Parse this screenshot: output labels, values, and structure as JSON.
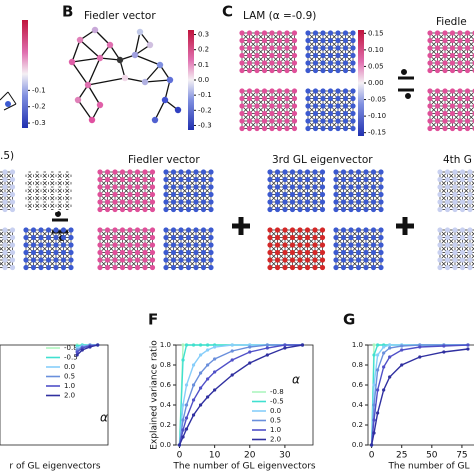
{
  "panel_labels": {
    "b": "B",
    "c": "C",
    "f": "F",
    "g": "G"
  },
  "titles": {
    "b": "Fiedler vector",
    "c": "LAM (α =-0.9)",
    "c_cut": "Fiedle",
    "row2_left": ".5)",
    "row2_a": "Fiedler vector",
    "row2_b": "3rd GL eigenvector",
    "row2_c": "4th G"
  },
  "colorbars": {
    "left": [
      -0.1,
      -0.2,
      -0.3
    ],
    "b": [
      0.3,
      0.2,
      0.1,
      {
        "value": 0,
        "label": "0.0"
      },
      -0.1,
      -0.2,
      -0.3
    ],
    "c": [
      0.15,
      {
        "value": 0.1,
        "label": "0.10"
      },
      0.05,
      {
        "value": 0,
        "label": "0.00"
      },
      -0.05,
      {
        "value": -0.1,
        "label": "-0.10"
      },
      -0.15
    ]
  },
  "chart_data": [
    {
      "type": "line",
      "x_label": "r of GL eigenvectors",
      "legend_title": "α",
      "x": [
        0,
        2,
        5,
        8
      ],
      "xlim": [
        -30,
        12
      ],
      "ylim": [
        0,
        1
      ],
      "series": [
        {
          "name": "-0.8",
          "color": "#aef5c0",
          "values": [
            1,
            1,
            1,
            1
          ]
        },
        {
          "name": "-0.5",
          "color": "#40e0d0",
          "values": [
            0.99,
            1,
            1,
            1
          ]
        },
        {
          "name": "0.0",
          "color": "#87cefa",
          "values": [
            0.97,
            0.99,
            1,
            1
          ]
        },
        {
          "name": "0.5",
          "color": "#6a8fdc",
          "values": [
            0.95,
            0.98,
            1,
            1
          ]
        },
        {
          "name": "1.0",
          "color": "#5050c8",
          "values": [
            0.93,
            0.97,
            0.99,
            1
          ]
        },
        {
          "name": "2.0",
          "color": "#3030a0",
          "values": [
            0.9,
            0.95,
            0.98,
            1
          ]
        }
      ]
    },
    {
      "type": "line",
      "y_label": "Explained variance ratio",
      "x_label": "The number of GL eigenvectors",
      "legend_title": "α",
      "x": [
        0,
        1,
        2,
        4,
        6,
        8,
        10,
        15,
        20,
        25,
        30,
        35
      ],
      "xlim": [
        -1,
        38
      ],
      "ylim": [
        0,
        1
      ],
      "xticks": [
        0,
        10,
        20,
        30
      ],
      "yticks": [
        {
          "value": 0,
          "label": "0.0"
        },
        0.2,
        0.4,
        0.6,
        0.8,
        {
          "value": 1,
          "label": "1.0"
        }
      ],
      "series": [
        {
          "name": "-0.8",
          "color": "#aef5c0",
          "values": [
            0,
            1,
            1,
            1,
            1,
            1,
            1,
            1,
            1,
            1,
            1,
            1
          ]
        },
        {
          "name": "-0.5",
          "color": "#40e0d0",
          "values": [
            0,
            0.85,
            1,
            1,
            1,
            1,
            1,
            1,
            1,
            1,
            1,
            1
          ]
        },
        {
          "name": "0.0",
          "color": "#87cefa",
          "values": [
            0,
            0.4,
            0.6,
            0.8,
            0.9,
            0.95,
            0.98,
            1,
            1,
            1,
            1,
            1
          ]
        },
        {
          "name": "0.5",
          "color": "#6a8fdc",
          "values": [
            0,
            0.25,
            0.4,
            0.6,
            0.72,
            0.8,
            0.86,
            0.94,
            0.98,
            1,
            1,
            1
          ]
        },
        {
          "name": "1.0",
          "color": "#5050c8",
          "values": [
            0,
            0.15,
            0.27,
            0.45,
            0.57,
            0.66,
            0.73,
            0.85,
            0.93,
            0.97,
            1,
            1
          ]
        },
        {
          "name": "2.0",
          "color": "#3030a0",
          "values": [
            0,
            0.08,
            0.16,
            0.3,
            0.4,
            0.48,
            0.55,
            0.7,
            0.82,
            0.9,
            0.97,
            1
          ]
        }
      ]
    },
    {
      "type": "line",
      "x_label": "The number of GL",
      "x": [
        0,
        2,
        5,
        10,
        15,
        25,
        40,
        60,
        80
      ],
      "xlim": [
        -3,
        95
      ],
      "ylim": [
        0,
        1
      ],
      "xticks": [
        0,
        25,
        50,
        75
      ],
      "yticks": [
        {
          "value": 0,
          "label": "0.0"
        },
        0.2,
        0.4,
        0.6,
        0.8,
        {
          "value": 1,
          "label": "1.0"
        }
      ],
      "series": [
        {
          "color": "#aef5c0",
          "values": [
            0,
            1,
            1,
            1,
            1,
            1,
            1,
            1,
            1
          ]
        },
        {
          "color": "#40e0d0",
          "values": [
            0,
            0.9,
            1,
            1,
            1,
            1,
            1,
            1,
            1
          ]
        },
        {
          "color": "#87cefa",
          "values": [
            0,
            0.6,
            0.9,
            0.98,
            1,
            1,
            1,
            1,
            1
          ]
        },
        {
          "color": "#6a8fdc",
          "values": [
            0,
            0.4,
            0.75,
            0.92,
            0.97,
            0.99,
            1,
            1,
            1
          ]
        },
        {
          "color": "#5050c8",
          "values": [
            0,
            0.25,
            0.55,
            0.78,
            0.88,
            0.95,
            0.98,
            0.99,
            1
          ]
        },
        {
          "color": "#3030a0",
          "values": [
            0,
            0.12,
            0.32,
            0.55,
            0.68,
            0.8,
            0.88,
            0.93,
            0.96
          ]
        }
      ]
    }
  ]
}
